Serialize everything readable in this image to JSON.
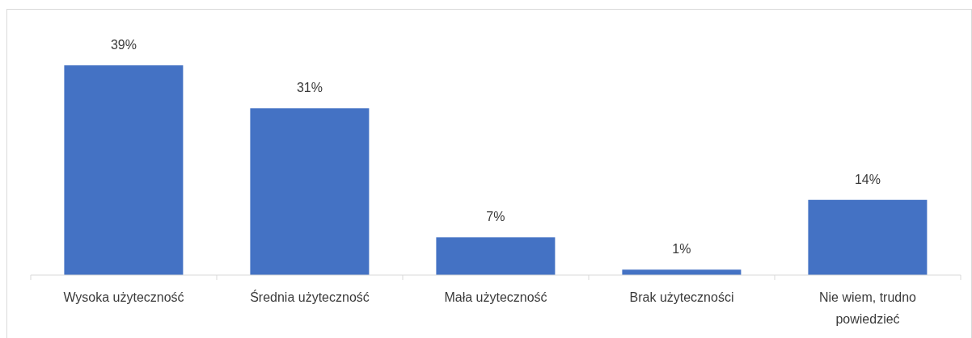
{
  "chart_data": {
    "type": "bar",
    "categories": [
      "Wysoka użyteczność",
      "Średnia użyteczność",
      "Mała użyteczność",
      "Brak użyteczności",
      "Nie wiem, trudno powiedzieć"
    ],
    "values": [
      39,
      31,
      7,
      1,
      14
    ],
    "value_labels": [
      "39%",
      "31%",
      "7%",
      "1%",
      "14%"
    ],
    "color": "#4472c4"
  }
}
